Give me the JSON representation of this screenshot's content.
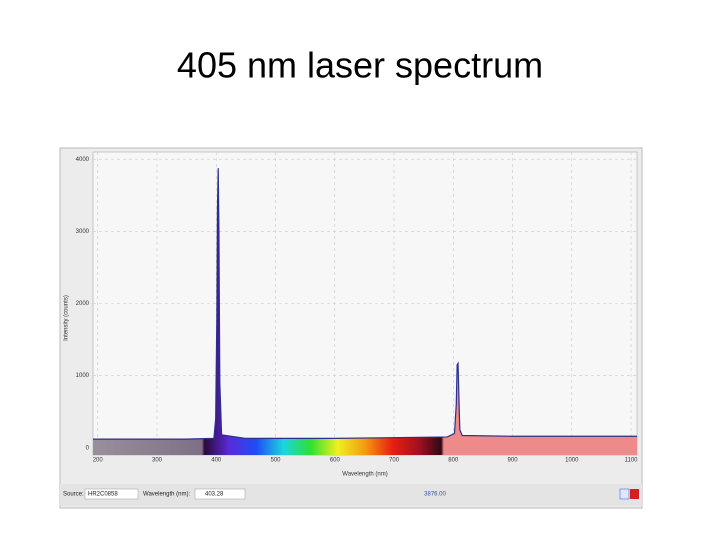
{
  "chart_data": {
    "type": "line",
    "title": "405 nm laser spectrum",
    "x_label": "Wavelength (nm)",
    "y_label": "Intensity (counts)",
    "x": [
      192,
      350,
      396,
      399,
      401,
      402,
      403.28,
      404.5,
      406,
      409,
      450,
      600,
      790,
      802,
      805,
      806.5,
      808,
      809.5,
      811,
      815,
      900,
      1000,
      1110
    ],
    "series": [
      {
        "name": "HR2C0858",
        "color": "#2b2f8f",
        "values": [
          120,
          120,
          130,
          400,
          1800,
          3300,
          3876,
          3000,
          900,
          180,
          130,
          130,
          150,
          200,
          600,
          1150,
          1170,
          700,
          250,
          170,
          160,
          160,
          160
        ]
      }
    ],
    "xlim": [
      192,
      1110
    ],
    "ylim": [
      -100,
      4100
    ],
    "xticks": [
      200,
      300,
      400,
      500,
      600,
      700,
      800,
      900,
      1000,
      1100
    ],
    "yticks": [
      0,
      1000,
      2000,
      3000,
      4000
    ],
    "grid": true
  },
  "toolbar": {
    "source_label": "Source:",
    "source": "HR2C0858",
    "wavelength_label": "Wavelength (nm):",
    "wavelength": "403.28",
    "intensity": "3876.00"
  }
}
